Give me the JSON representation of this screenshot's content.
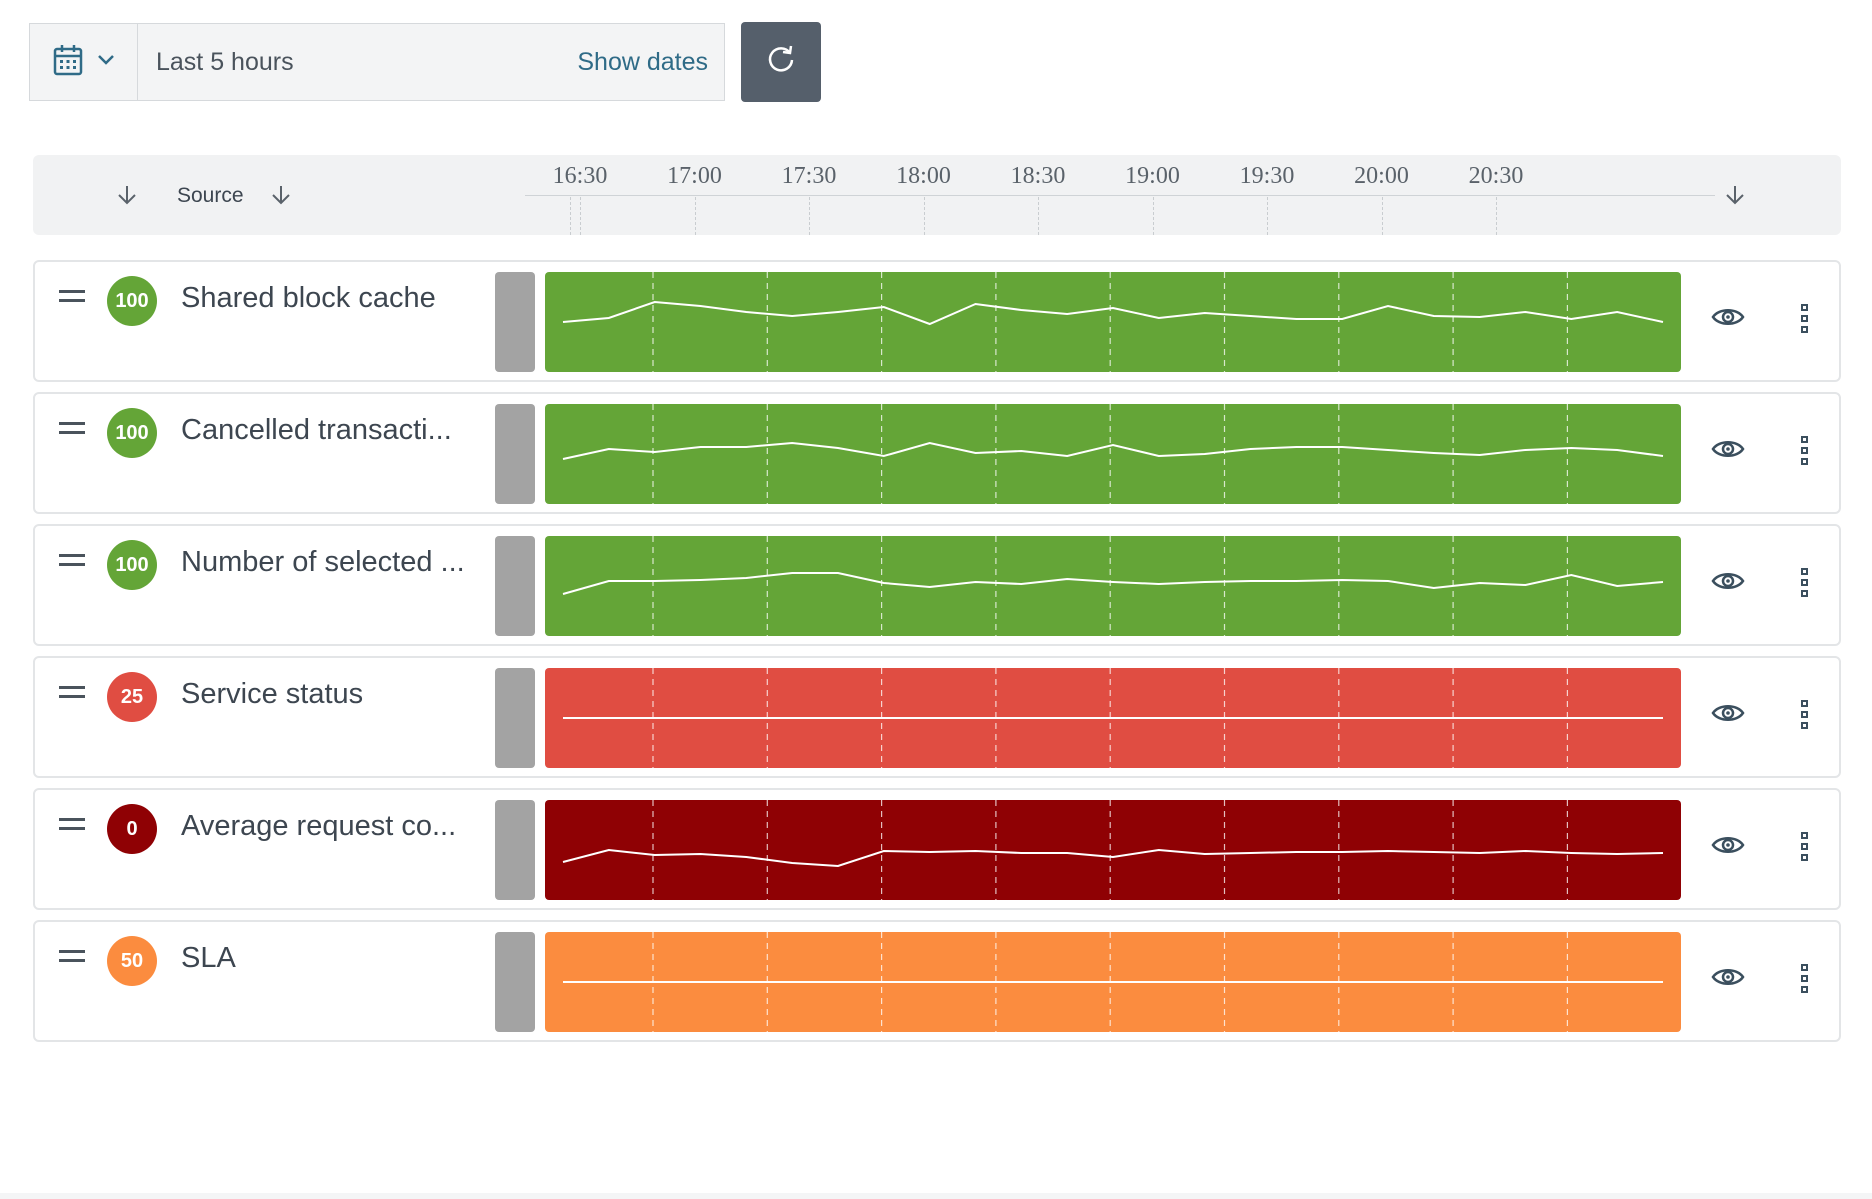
{
  "toolbar": {
    "calendar_icon": "calendar-icon",
    "range_label": "Last 5 hours",
    "show_dates_label": "Show dates",
    "refresh_icon": "refresh-icon"
  },
  "header": {
    "source_label": "Source",
    "time_ticks": [
      "16:30",
      "17:00",
      "17:30",
      "18:00",
      "18:30",
      "19:00",
      "19:30",
      "20:00",
      "20:30"
    ]
  },
  "rows": [
    {
      "title": "Shared block cache",
      "score": "100",
      "color": "#64a537",
      "series": [
        0.5,
        0.46,
        0.3,
        0.34,
        0.4,
        0.44,
        0.4,
        0.35,
        0.52,
        0.32,
        0.38,
        0.42,
        0.36,
        0.46,
        0.41,
        0.44,
        0.47,
        0.47,
        0.34,
        0.44,
        0.45,
        0.4,
        0.47,
        0.4,
        0.5
      ]
    },
    {
      "title": "Cancelled transacti...",
      "score": "100",
      "color": "#64a537",
      "series": [
        0.55,
        0.45,
        0.48,
        0.43,
        0.43,
        0.39,
        0.44,
        0.52,
        0.39,
        0.49,
        0.47,
        0.52,
        0.41,
        0.52,
        0.5,
        0.45,
        0.43,
        0.43,
        0.46,
        0.49,
        0.51,
        0.46,
        0.44,
        0.46,
        0.52
      ]
    },
    {
      "title": "Number of selected ...",
      "score": "100",
      "color": "#64a537",
      "series": [
        0.58,
        0.45,
        0.45,
        0.44,
        0.42,
        0.37,
        0.37,
        0.47,
        0.51,
        0.46,
        0.48,
        0.43,
        0.46,
        0.48,
        0.46,
        0.45,
        0.45,
        0.44,
        0.45,
        0.52,
        0.47,
        0.49,
        0.39,
        0.5,
        0.46
      ]
    },
    {
      "title": "Service status",
      "score": "25",
      "color": "#e04d42",
      "series": [
        0.5,
        0.5,
        0.5,
        0.5,
        0.5,
        0.5,
        0.5,
        0.5,
        0.5,
        0.5,
        0.5,
        0.5,
        0.5,
        0.5,
        0.5,
        0.5,
        0.5,
        0.5,
        0.5,
        0.5,
        0.5,
        0.5,
        0.5,
        0.5,
        0.5
      ]
    },
    {
      "title": "Average request co...",
      "score": "0",
      "color": "#8f0104",
      "series": [
        0.62,
        0.5,
        0.55,
        0.54,
        0.57,
        0.63,
        0.66,
        0.51,
        0.52,
        0.51,
        0.53,
        0.53,
        0.57,
        0.5,
        0.54,
        0.53,
        0.52,
        0.52,
        0.51,
        0.52,
        0.53,
        0.51,
        0.53,
        0.54,
        0.53
      ]
    },
    {
      "title": "SLA",
      "score": "50",
      "color": "#fb8c3f",
      "series": [
        0.5,
        0.5,
        0.5,
        0.5,
        0.5,
        0.5,
        0.5,
        0.5,
        0.5,
        0.5,
        0.5,
        0.5,
        0.5,
        0.5,
        0.5,
        0.5,
        0.5,
        0.5,
        0.5,
        0.5,
        0.5,
        0.5,
        0.5,
        0.5,
        0.5
      ]
    }
  ],
  "row_icons": {
    "drag": "drag-handle-icon",
    "view": "eye-icon",
    "more": "more-icon"
  }
}
